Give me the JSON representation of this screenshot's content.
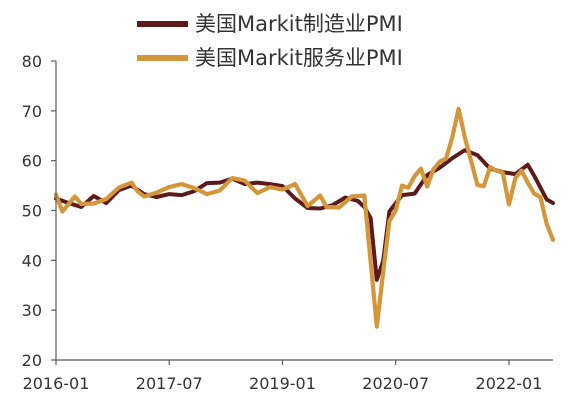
{
  "chart_data": {
    "type": "line",
    "x_labels": [
      "2016-01",
      "2017-07",
      "2019-01",
      "2020-07",
      "2022-01"
    ],
    "ylim": [
      20,
      80
    ],
    "yticks": [
      20,
      30,
      40,
      50,
      60,
      70,
      80
    ],
    "xlim": [
      "2016-01",
      "2022-08"
    ],
    "grid": false,
    "legend_position": "top",
    "series": [
      {
        "name": "美国Markit制造业PMI",
        "color": "#5c1a1b",
        "points": [
          [
            "2016-01",
            52.4
          ],
          [
            "2016-03",
            51.5
          ],
          [
            "2016-05",
            50.7
          ],
          [
            "2016-07",
            52.9
          ],
          [
            "2016-09",
            51.5
          ],
          [
            "2016-11",
            54.1
          ],
          [
            "2017-01",
            55.0
          ],
          [
            "2017-03",
            53.3
          ],
          [
            "2017-05",
            52.7
          ],
          [
            "2017-07",
            53.3
          ],
          [
            "2017-09",
            53.1
          ],
          [
            "2017-11",
            53.9
          ],
          [
            "2018-01",
            55.5
          ],
          [
            "2018-03",
            55.6
          ],
          [
            "2018-05",
            56.4
          ],
          [
            "2018-07",
            55.3
          ],
          [
            "2018-09",
            55.6
          ],
          [
            "2018-11",
            55.3
          ],
          [
            "2019-01",
            54.9
          ],
          [
            "2019-03",
            52.4
          ],
          [
            "2019-05",
            50.5
          ],
          [
            "2019-07",
            50.4
          ],
          [
            "2019-09",
            51.1
          ],
          [
            "2019-11",
            52.6
          ],
          [
            "2020-01",
            51.9
          ],
          [
            "2020-02",
            50.7
          ],
          [
            "2020-03",
            48.5
          ],
          [
            "2020-04",
            36.1
          ],
          [
            "2020-05",
            39.8
          ],
          [
            "2020-06",
            49.8
          ],
          [
            "2020-08",
            53.1
          ],
          [
            "2020-10",
            53.4
          ],
          [
            "2020-12",
            57.1
          ],
          [
            "2021-02",
            58.6
          ],
          [
            "2021-04",
            60.5
          ],
          [
            "2021-06",
            62.1
          ],
          [
            "2021-08",
            61.1
          ],
          [
            "2021-10",
            58.4
          ],
          [
            "2021-12",
            57.7
          ],
          [
            "2022-02",
            57.3
          ],
          [
            "2022-04",
            59.2
          ],
          [
            "2022-05",
            57.0
          ],
          [
            "2022-07",
            52.2
          ],
          [
            "2022-08",
            51.5
          ]
        ]
      },
      {
        "name": "美国Markit服务业PMI",
        "color": "#d4963a",
        "points": [
          [
            "2016-01",
            53.2
          ],
          [
            "2016-02",
            49.8
          ],
          [
            "2016-04",
            52.8
          ],
          [
            "2016-05",
            51.3
          ],
          [
            "2016-07",
            51.4
          ],
          [
            "2016-09",
            52.3
          ],
          [
            "2016-11",
            54.6
          ],
          [
            "2017-01",
            55.6
          ],
          [
            "2017-02",
            53.8
          ],
          [
            "2017-03",
            52.8
          ],
          [
            "2017-05",
            53.6
          ],
          [
            "2017-07",
            54.7
          ],
          [
            "2017-09",
            55.3
          ],
          [
            "2017-11",
            54.5
          ],
          [
            "2018-01",
            53.3
          ],
          [
            "2018-03",
            54.0
          ],
          [
            "2018-05",
            56.5
          ],
          [
            "2018-07",
            56.0
          ],
          [
            "2018-09",
            53.5
          ],
          [
            "2018-11",
            54.7
          ],
          [
            "2019-01",
            54.2
          ],
          [
            "2019-03",
            55.3
          ],
          [
            "2019-05",
            50.9
          ],
          [
            "2019-07",
            53.0
          ],
          [
            "2019-08",
            50.7
          ],
          [
            "2019-10",
            50.6
          ],
          [
            "2019-12",
            52.8
          ],
          [
            "2020-02",
            53.0
          ],
          [
            "2020-03",
            39.8
          ],
          [
            "2020-04",
            26.7
          ],
          [
            "2020-05",
            37.5
          ],
          [
            "2020-06",
            47.9
          ],
          [
            "2020-07",
            50.0
          ],
          [
            "2020-08",
            55.0
          ],
          [
            "2020-09",
            54.6
          ],
          [
            "2020-10",
            56.9
          ],
          [
            "2020-11",
            58.4
          ],
          [
            "2020-12",
            54.8
          ],
          [
            "2021-01",
            58.3
          ],
          [
            "2021-02",
            59.8
          ],
          [
            "2021-03",
            60.4
          ],
          [
            "2021-04",
            64.7
          ],
          [
            "2021-05",
            70.4
          ],
          [
            "2021-06",
            64.6
          ],
          [
            "2021-07",
            59.9
          ],
          [
            "2021-08",
            55.1
          ],
          [
            "2021-09",
            54.9
          ],
          [
            "2021-10",
            58.7
          ],
          [
            "2021-11",
            58.0
          ],
          [
            "2021-12",
            57.6
          ],
          [
            "2022-01",
            51.2
          ],
          [
            "2022-02",
            56.5
          ],
          [
            "2022-03",
            58.0
          ],
          [
            "2022-04",
            55.6
          ],
          [
            "2022-05",
            53.4
          ],
          [
            "2022-06",
            52.7
          ],
          [
            "2022-07",
            47.3
          ],
          [
            "2022-08",
            44.1
          ]
        ]
      }
    ]
  }
}
